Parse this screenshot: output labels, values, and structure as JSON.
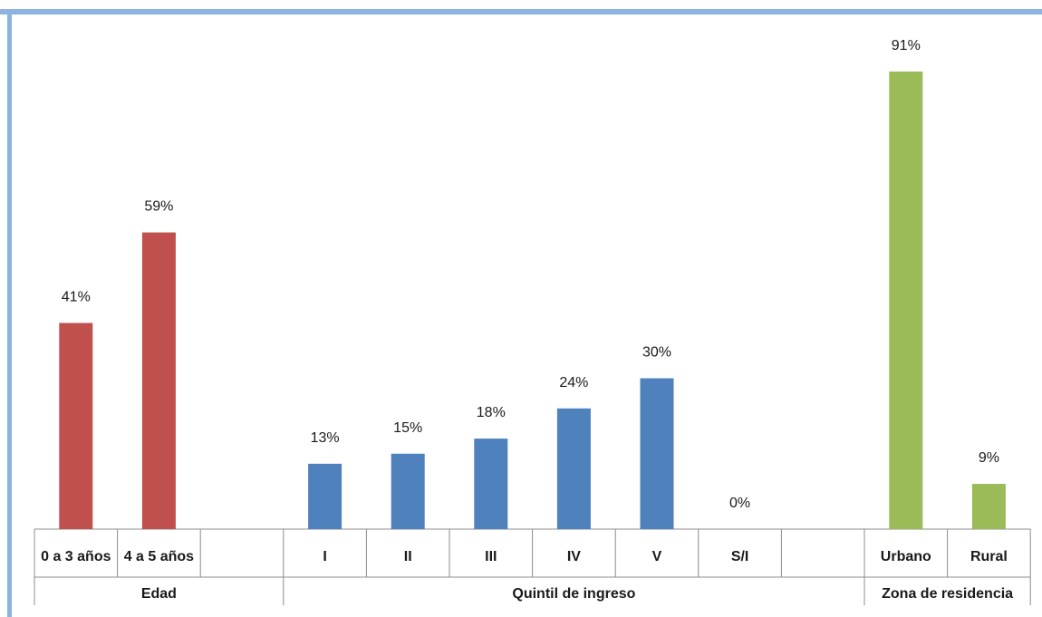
{
  "chart_data": {
    "type": "bar",
    "title": "",
    "xlabel": "",
    "ylabel": "",
    "ylim": [
      0,
      100
    ],
    "grid": false,
    "legend": "none",
    "unit_suffix": "%",
    "groups": [
      {
        "name": "Edad",
        "color": "#c0504d",
        "categories": [
          "0 a 3 años",
          "4 a 5 años"
        ],
        "values": [
          41,
          59
        ],
        "labels": [
          "41%",
          "59%"
        ]
      },
      {
        "name": "Quintil de ingreso",
        "color": "#4f81bd",
        "categories": [
          "I",
          "II",
          "III",
          "IV",
          "V",
          "S/I"
        ],
        "values": [
          13,
          15,
          18,
          24,
          30,
          0
        ],
        "labels": [
          "13%",
          "15%",
          "18%",
          "24%",
          "30%",
          "0%"
        ]
      },
      {
        "name": "Zona de residencia",
        "color": "#9bbb59",
        "categories": [
          "Urbano",
          "Rural"
        ],
        "values": [
          91,
          9
        ],
        "labels": [
          "91%",
          "9%"
        ]
      }
    ]
  },
  "colors": {
    "frame_border": "#8db3e2",
    "axis_lines": "#8c8c8c"
  }
}
